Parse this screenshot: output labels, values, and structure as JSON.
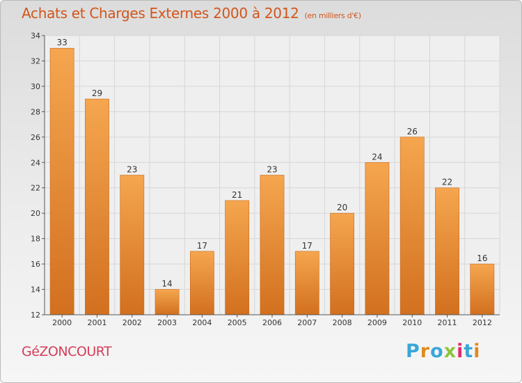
{
  "header": {
    "title": "Achats et Charges Externes 2000 à 2012",
    "unit": "(en milliers d'€)"
  },
  "commune": "GéZONCOURT",
  "brand": {
    "letters": [
      "P",
      "r",
      "o",
      "x",
      "i",
      "t",
      "i"
    ]
  },
  "colors": {
    "bar_light": "#f5a64f",
    "bar_dark": "#d2701f",
    "title": "#d2551a",
    "commune": "#d23e5a",
    "grid": "#d6d6d6"
  },
  "chart_data": {
    "type": "bar",
    "title": "Achats et Charges Externes 2000 à 2012",
    "subtitle": "(en milliers d'€)",
    "categories": [
      "2000",
      "2001",
      "2002",
      "2003",
      "2004",
      "2005",
      "2006",
      "2007",
      "2008",
      "2009",
      "2010",
      "2011",
      "2012"
    ],
    "values": [
      33,
      29,
      23,
      14,
      17,
      21,
      23,
      17,
      20,
      24,
      26,
      22,
      16
    ],
    "ylim": [
      12,
      34
    ],
    "yticks": [
      12,
      14,
      16,
      18,
      20,
      22,
      24,
      26,
      28,
      30,
      32,
      34
    ],
    "grid": true,
    "data_labels": true
  }
}
